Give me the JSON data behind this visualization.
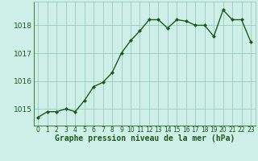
{
  "x": [
    0,
    1,
    2,
    3,
    4,
    5,
    6,
    7,
    8,
    9,
    10,
    11,
    12,
    13,
    14,
    15,
    16,
    17,
    18,
    19,
    20,
    21,
    22,
    23
  ],
  "y": [
    1014.7,
    1014.9,
    1014.9,
    1015.0,
    1014.9,
    1015.3,
    1015.8,
    1015.95,
    1016.3,
    1017.0,
    1017.45,
    1017.8,
    1018.2,
    1018.2,
    1017.9,
    1018.2,
    1018.15,
    1018.0,
    1018.0,
    1017.6,
    1018.55,
    1018.2,
    1018.2,
    1017.4
  ],
  "line_color": "#1a5c1a",
  "marker": "D",
  "markersize": 2,
  "linewidth": 1.0,
  "background_color": "#cff0e8",
  "grid_color": "#99ccbb",
  "tick_color": "#1a5c1a",
  "label_color": "#1a5c1a",
  "xlabel": "Graphe pression niveau de la mer (hPa)",
  "xlabel_fontsize": 7,
  "ytick_fontsize": 6.5,
  "xtick_fontsize": 5.5,
  "yticks": [
    1015,
    1016,
    1017,
    1018
  ],
  "xticks": [
    0,
    1,
    2,
    3,
    4,
    5,
    6,
    7,
    8,
    9,
    10,
    11,
    12,
    13,
    14,
    15,
    16,
    17,
    18,
    19,
    20,
    21,
    22,
    23
  ],
  "ylim": [
    1014.4,
    1018.85
  ],
  "xlim": [
    -0.5,
    23.5
  ]
}
